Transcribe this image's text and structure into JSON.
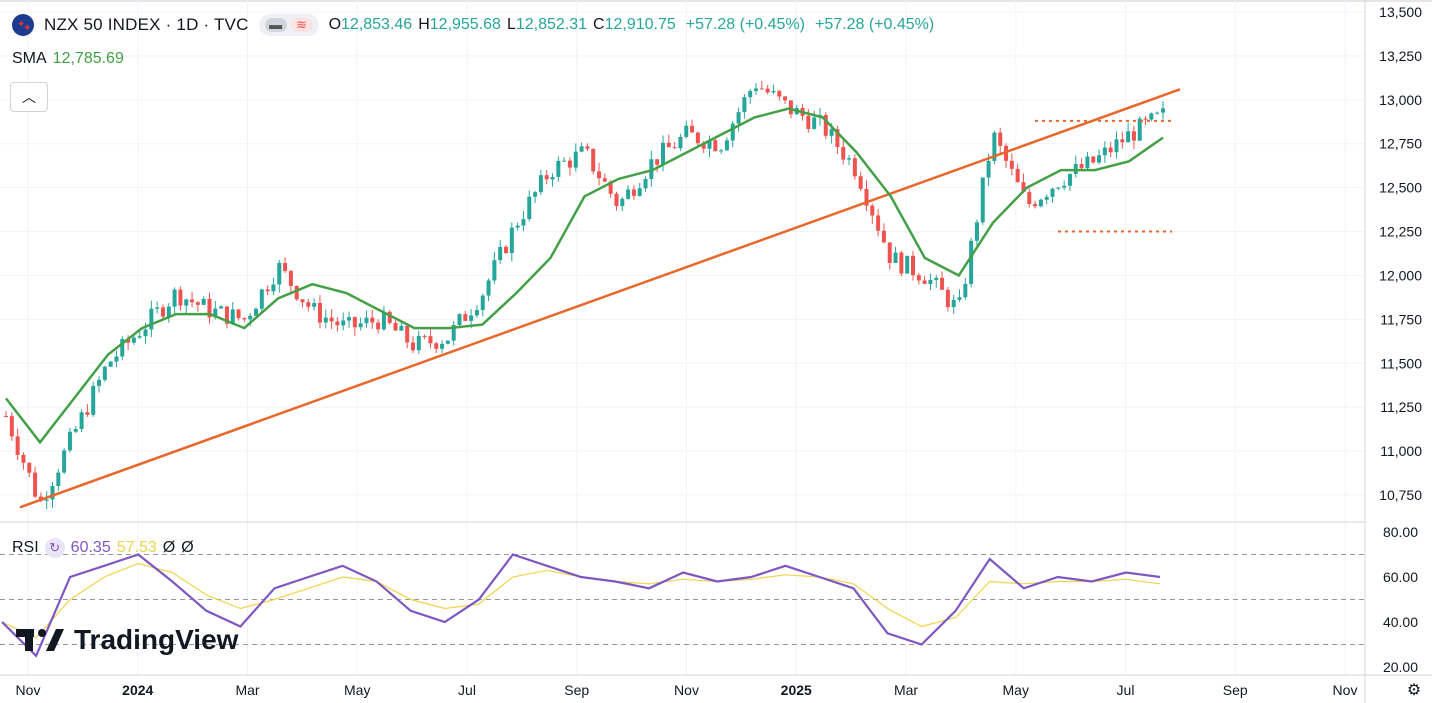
{
  "header": {
    "symbol": "NZX 50 INDEX · 1D · TVC",
    "open_label": "O",
    "open": "12,853.46",
    "high_label": "H",
    "high": "12,955.68",
    "low_label": "L",
    "low": "12,852.31",
    "close_label": "C",
    "close": "12,910.75",
    "change": "+57.28 (+0.45%)",
    "change2": "+57.28 (+0.45%)"
  },
  "sma": {
    "label": "SMA",
    "value": "12,785.69"
  },
  "rsi": {
    "label": "RSI",
    "value": "60.35",
    "ma_value": "57.53",
    "extra1": "Ø",
    "extra2": "Ø"
  },
  "logo": {
    "text": "TradingView"
  },
  "colors": {
    "up": "#26a69a",
    "down": "#ef5350",
    "sma": "#43a047",
    "trend": "#e8672b",
    "rsi": "#7e57c2",
    "rsi_ma": "#f2d34a",
    "grid": "#f0f3fa"
  },
  "icons": [
    "flag-nz-icon",
    "chevron-up-icon",
    "rsi-settings-icon",
    "tradingview-logo-icon",
    "chart-settings-icon"
  ],
  "chart_data": {
    "type": "line",
    "price": {
      "y_ticks": [
        "13,500",
        "13,250",
        "13,000",
        "12,750",
        "12,500",
        "12,250",
        "12,000",
        "11,750",
        "11,500",
        "11,250",
        "11,000",
        "10,750"
      ],
      "ylim": [
        10650,
        13500
      ],
      "x_labels": [
        "Nov",
        "2024",
        "Mar",
        "May",
        "Jul",
        "Sep",
        "Nov",
        "2025",
        "Mar",
        "May",
        "Jul",
        "Sep",
        "Nov"
      ],
      "x_label_bold": [
        false,
        true,
        false,
        false,
        false,
        false,
        false,
        true,
        false,
        false,
        false,
        false,
        false
      ],
      "series": [
        {
          "name": "SMA",
          "values": [
            11300,
            11050,
            11300,
            11550,
            11700,
            11780,
            11780,
            11700,
            11870,
            11950,
            11900,
            11800,
            11700,
            11700,
            11720,
            11900,
            12100,
            12450,
            12550,
            12600,
            12700,
            12800,
            12900,
            12950,
            12900,
            12700,
            12450,
            12100,
            12000,
            12300,
            12500,
            12600,
            12600,
            12650,
            12785
          ]
        },
        {
          "name": "close",
          "values": [
            11200,
            10700,
            11100,
            11500,
            11700,
            11900,
            11800,
            11750,
            12050,
            11800,
            11700,
            11750,
            11600,
            11650,
            11900,
            12300,
            12600,
            12700,
            12400,
            12650,
            12800,
            12750,
            13100,
            12950,
            12850,
            12600,
            12100,
            12000,
            11800,
            12800,
            12400,
            12550,
            12650,
            12800,
            12910
          ]
        }
      ],
      "trendline": [
        [
          0,
          10680
        ],
        [
          35,
          13060
        ]
      ],
      "resistance": 12880,
      "support": 12250
    },
    "rsi": {
      "y_ticks": [
        "80.00",
        "60.00",
        "40.00",
        "20.00"
      ],
      "ylim": [
        20,
        80
      ],
      "levels": [
        70,
        50,
        30
      ],
      "series": [
        {
          "name": "RSI",
          "values": [
            40,
            25,
            60,
            65,
            70,
            58,
            45,
            38,
            55,
            60,
            65,
            58,
            45,
            40,
            50,
            70,
            65,
            60,
            58,
            55,
            62,
            58,
            60,
            65,
            60,
            55,
            35,
            30,
            45,
            68,
            55,
            60,
            58,
            62,
            60
          ]
        },
        {
          "name": "RSI MA",
          "values": [
            40,
            33,
            50,
            60,
            66,
            62,
            52,
            46,
            50,
            55,
            60,
            58,
            50,
            46,
            48,
            60,
            63,
            60,
            58,
            57,
            59,
            58,
            59,
            61,
            60,
            57,
            46,
            38,
            42,
            58,
            57,
            58,
            58,
            59,
            57
          ]
        }
      ]
    }
  }
}
